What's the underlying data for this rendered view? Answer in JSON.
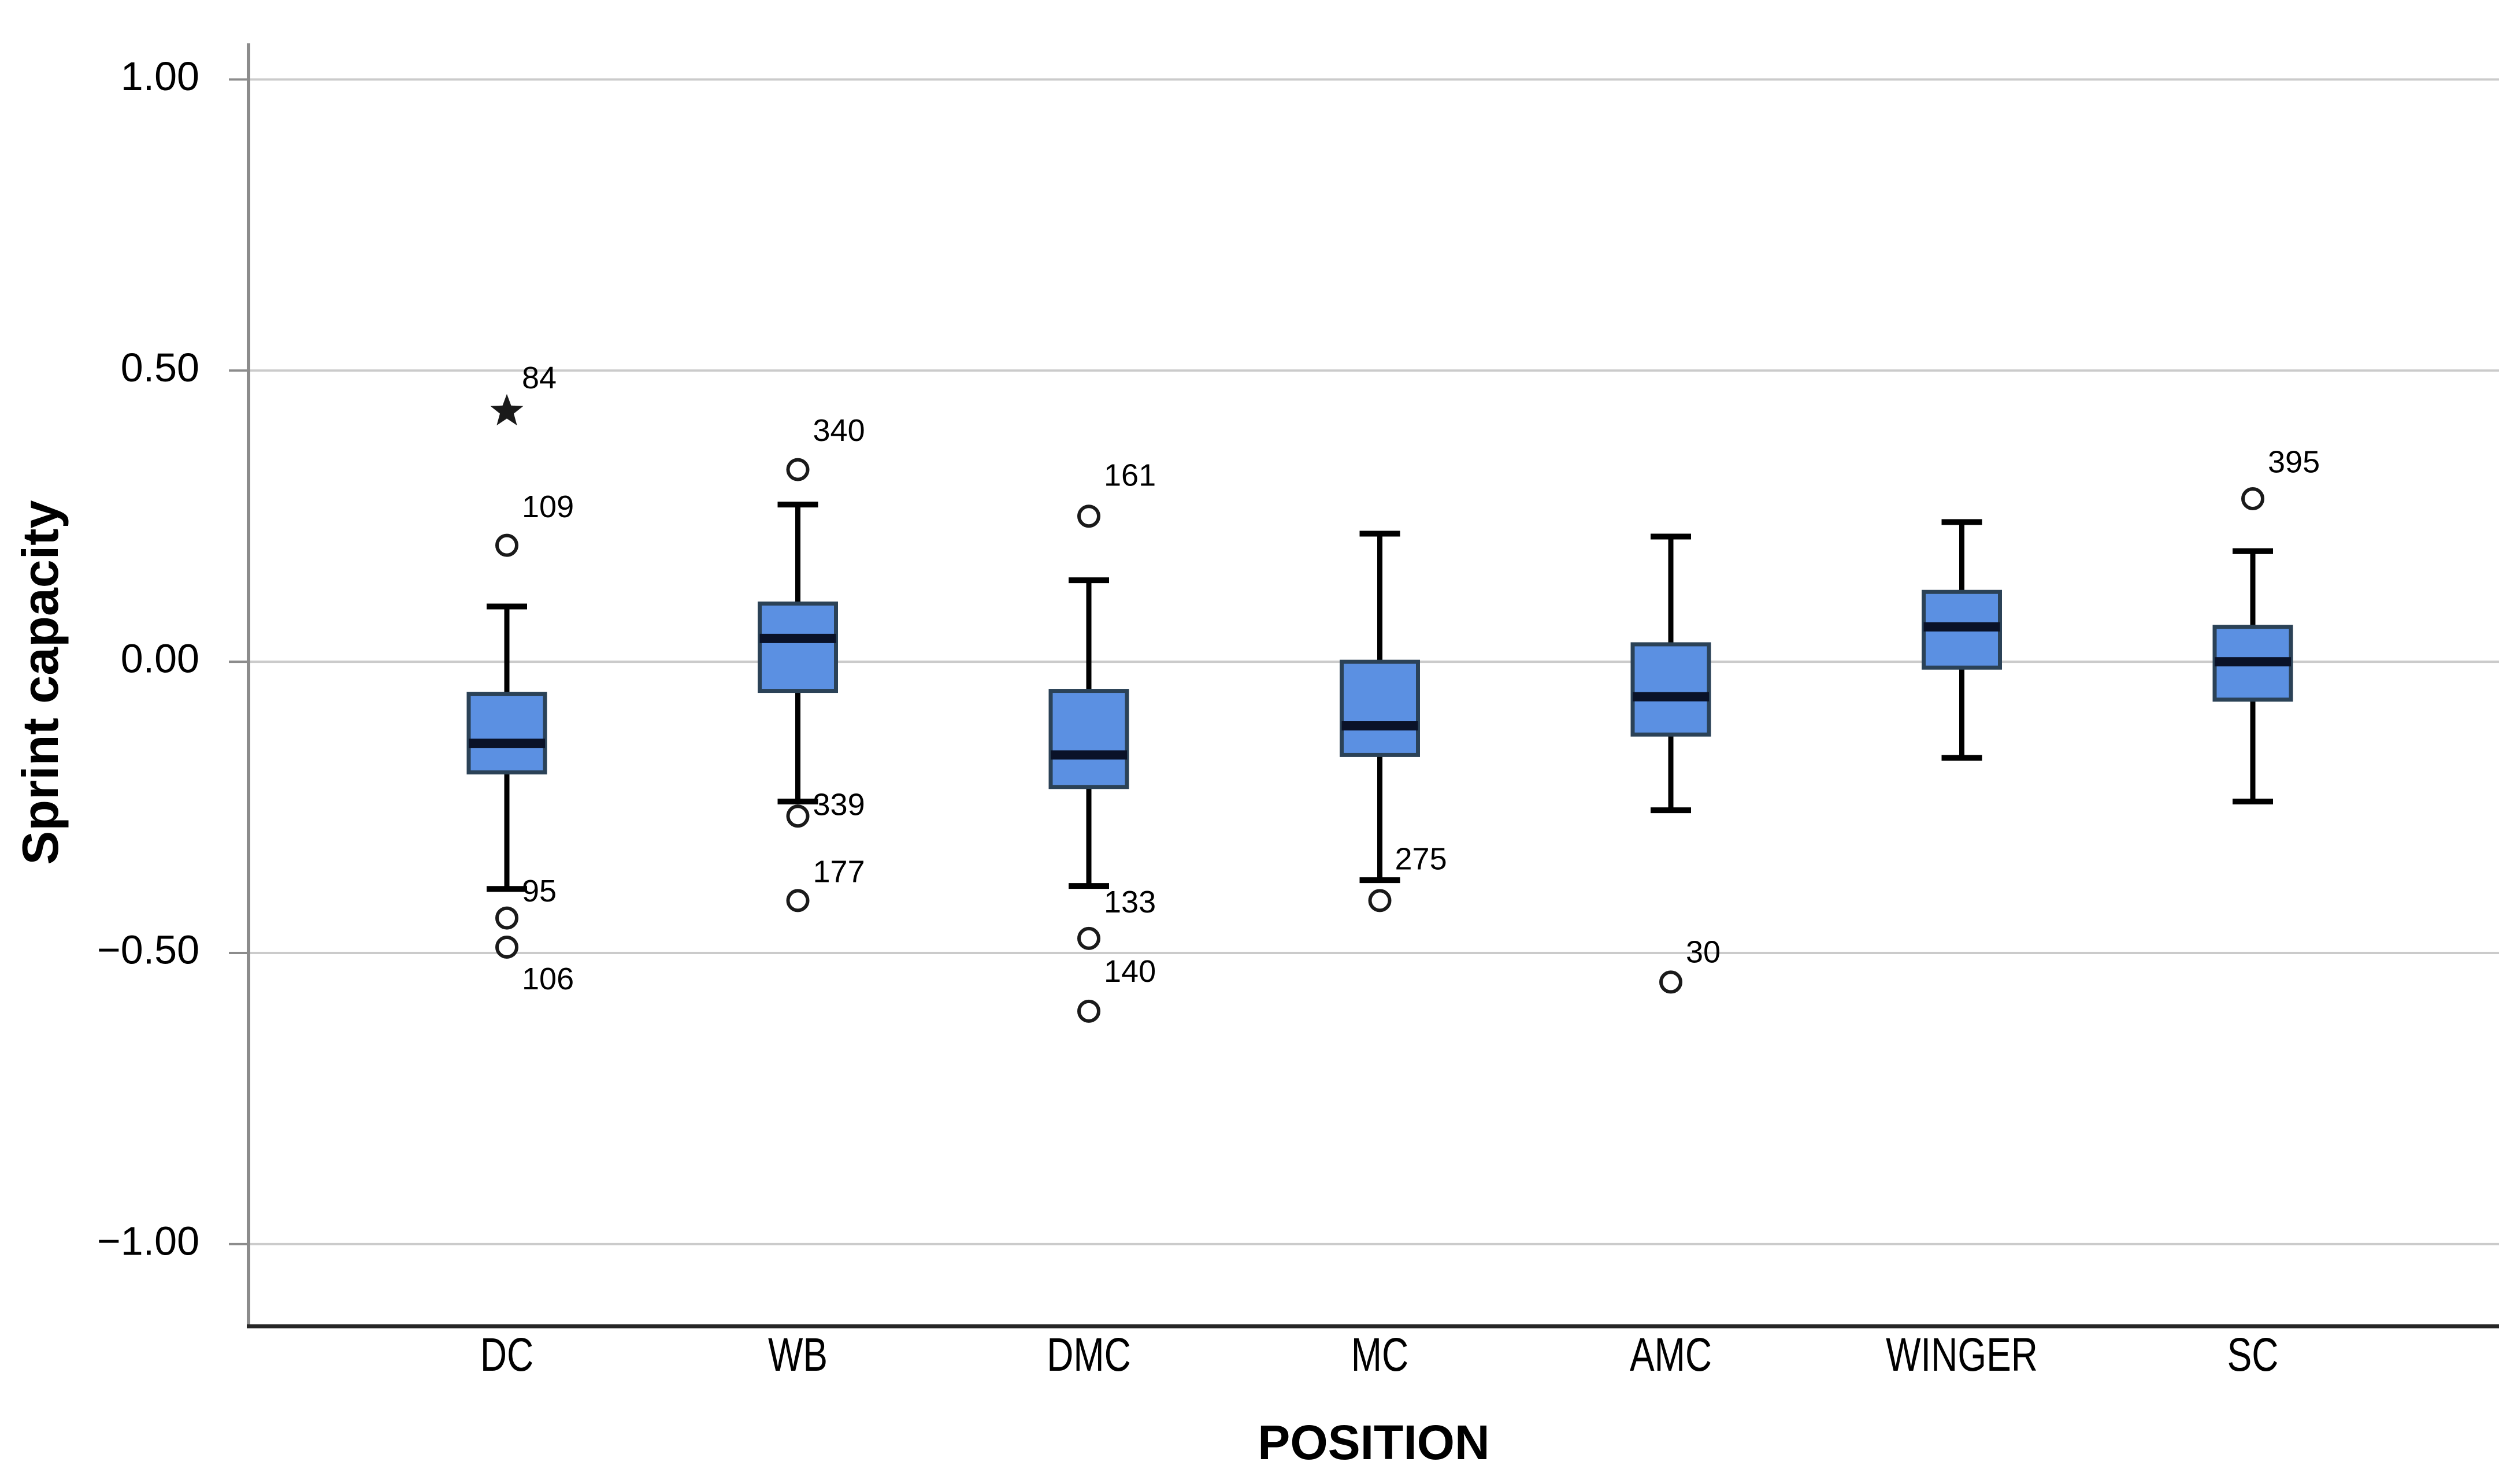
{
  "chart_data": {
    "type": "boxplot",
    "title": "",
    "ylabel": "Sprint capacity",
    "xlabel": "POSITION",
    "grid": "horizontal-on",
    "legend": "none",
    "ylim": [
      -1.141,
      1.057
    ],
    "y_ticks": [
      1.0,
      0.5,
      0.0,
      -0.5,
      -1.0
    ],
    "y_tick_labels": [
      "1.00",
      "0.50",
      "0.00",
      "−0.50",
      "−1.00"
    ],
    "categories": [
      "DC",
      "WB",
      "DMC",
      "MC",
      "AMC",
      "WINGER",
      "SC"
    ],
    "series": [
      {
        "name": "DC",
        "whisker_low": -0.39,
        "q1": -0.19,
        "median": -0.14,
        "q3": -0.055,
        "whisker_high": 0.095,
        "outliers": [
          {
            "label": "84",
            "value": 0.43,
            "marker": "star",
            "label_dy": -54
          },
          {
            "label": "109",
            "value": 0.2,
            "marker": "circle",
            "label_dy": -63
          },
          {
            "label": "95",
            "value": -0.44,
            "marker": "circle",
            "label_dy": -43
          },
          {
            "label": "106",
            "value": -0.49,
            "marker": "circle",
            "label_dy": 59
          }
        ]
      },
      {
        "name": "WB",
        "whisker_low": -0.24,
        "q1": -0.05,
        "median": 0.04,
        "q3": 0.1,
        "whisker_high": 0.27,
        "outliers": [
          {
            "label": "340",
            "value": 0.33,
            "marker": "circle",
            "label_dy": -64
          },
          {
            "label": "339",
            "value": -0.265,
            "marker": "circle",
            "label_dy": -16
          },
          {
            "label": "177",
            "value": -0.41,
            "marker": "circle",
            "label_dy": -46
          }
        ]
      },
      {
        "name": "DMC",
        "whisker_low": -0.385,
        "q1": -0.215,
        "median": -0.16,
        "q3": -0.05,
        "whisker_high": 0.14,
        "outliers": [
          {
            "label": "161",
            "value": 0.25,
            "marker": "circle",
            "label_dy": -67
          },
          {
            "label": "133",
            "value": -0.475,
            "marker": "circle",
            "label_dy": -59
          },
          {
            "label": "140",
            "value": -0.6,
            "marker": "circle",
            "label_dy": -65
          }
        ]
      },
      {
        "name": "MC",
        "whisker_low": -0.375,
        "q1": -0.16,
        "median": -0.11,
        "q3": 0.0,
        "whisker_high": 0.22,
        "outliers": [
          {
            "label": "275",
            "value": -0.41,
            "marker": "circle",
            "label_dy": -68
          }
        ]
      },
      {
        "name": "AMC",
        "whisker_low": -0.255,
        "q1": -0.125,
        "median": -0.06,
        "q3": 0.03,
        "whisker_high": 0.215,
        "outliers": [
          {
            "label": "30",
            "value": -0.55,
            "marker": "circle",
            "label_dy": -48
          }
        ]
      },
      {
        "name": "WINGER",
        "whisker_low": -0.165,
        "q1": -0.01,
        "median": 0.06,
        "q3": 0.12,
        "whisker_high": 0.24,
        "outliers": []
      },
      {
        "name": "SC",
        "whisker_low": -0.24,
        "q1": -0.065,
        "median": 0.0,
        "q3": 0.06,
        "whisker_high": 0.19,
        "outliers": [
          {
            "label": "395",
            "value": 0.28,
            "marker": "circle",
            "label_dy": -60
          }
        ]
      }
    ]
  },
  "colors": {
    "box_fill": "#5B90E2",
    "box_border": "#2B4257",
    "median": "#0A1228",
    "whisker": "#000000",
    "outlier_stroke": "#1A1A1A",
    "gridline": "#CBCBCB",
    "y_axis": "#8C8C8C",
    "x_axis": "#262626",
    "text": "#000000"
  }
}
